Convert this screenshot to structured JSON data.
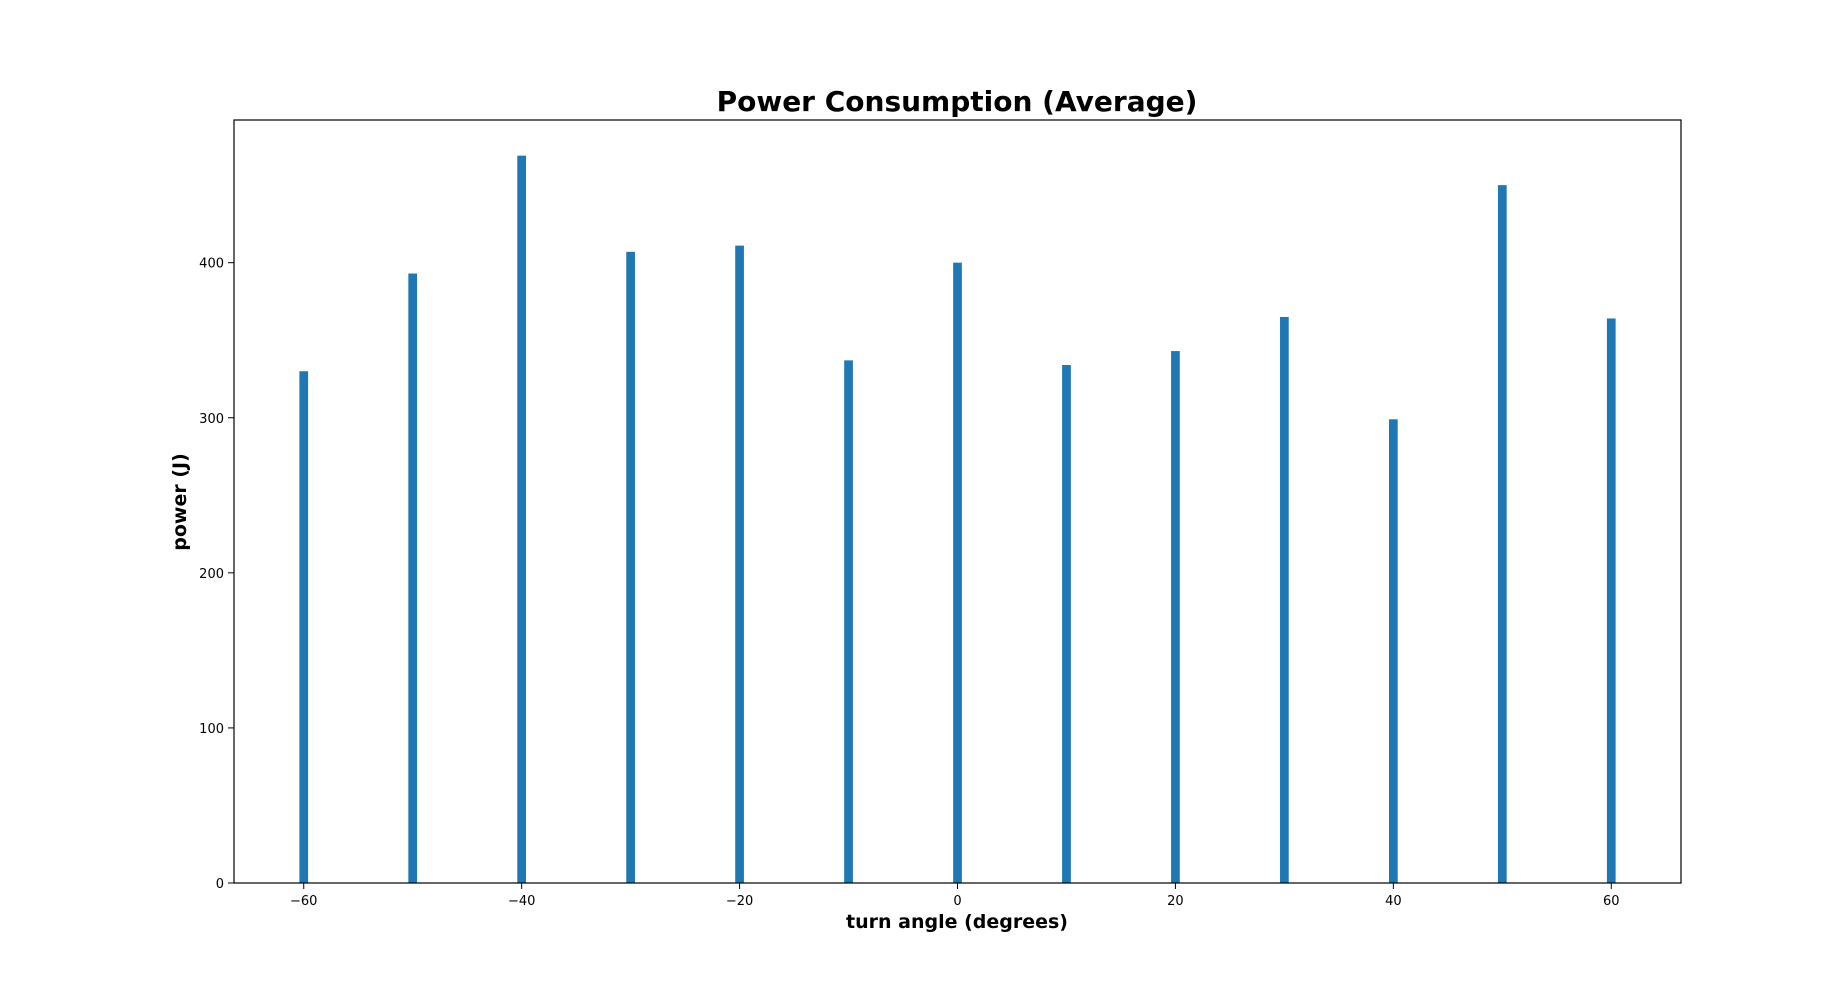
{
  "chart_data": {
    "type": "bar",
    "title": "Power Consumption (Average)",
    "xlabel": "turn angle (degrees)",
    "ylabel": "power (J)",
    "x": [
      -60,
      -50,
      -40,
      -30,
      -20,
      -10,
      0,
      10,
      20,
      30,
      40,
      50,
      60
    ],
    "values": [
      330,
      393,
      469,
      407,
      411,
      337,
      400,
      334,
      343,
      365,
      299,
      450,
      364
    ],
    "bar_width": 0.8,
    "xlim": [
      -66.4,
      66.4
    ],
    "ylim": [
      0,
      492
    ],
    "xticks": [
      -60,
      -40,
      -20,
      0,
      20,
      40,
      60
    ],
    "xtick_labels": [
      "−60",
      "−40",
      "−20",
      "0",
      "20",
      "40",
      "60"
    ],
    "yticks": [
      0,
      100,
      200,
      300,
      400
    ],
    "ytick_labels": [
      "0",
      "100",
      "200",
      "300",
      "400"
    ],
    "bar_color": "#1f77b4",
    "grid": false,
    "legend": "none"
  }
}
